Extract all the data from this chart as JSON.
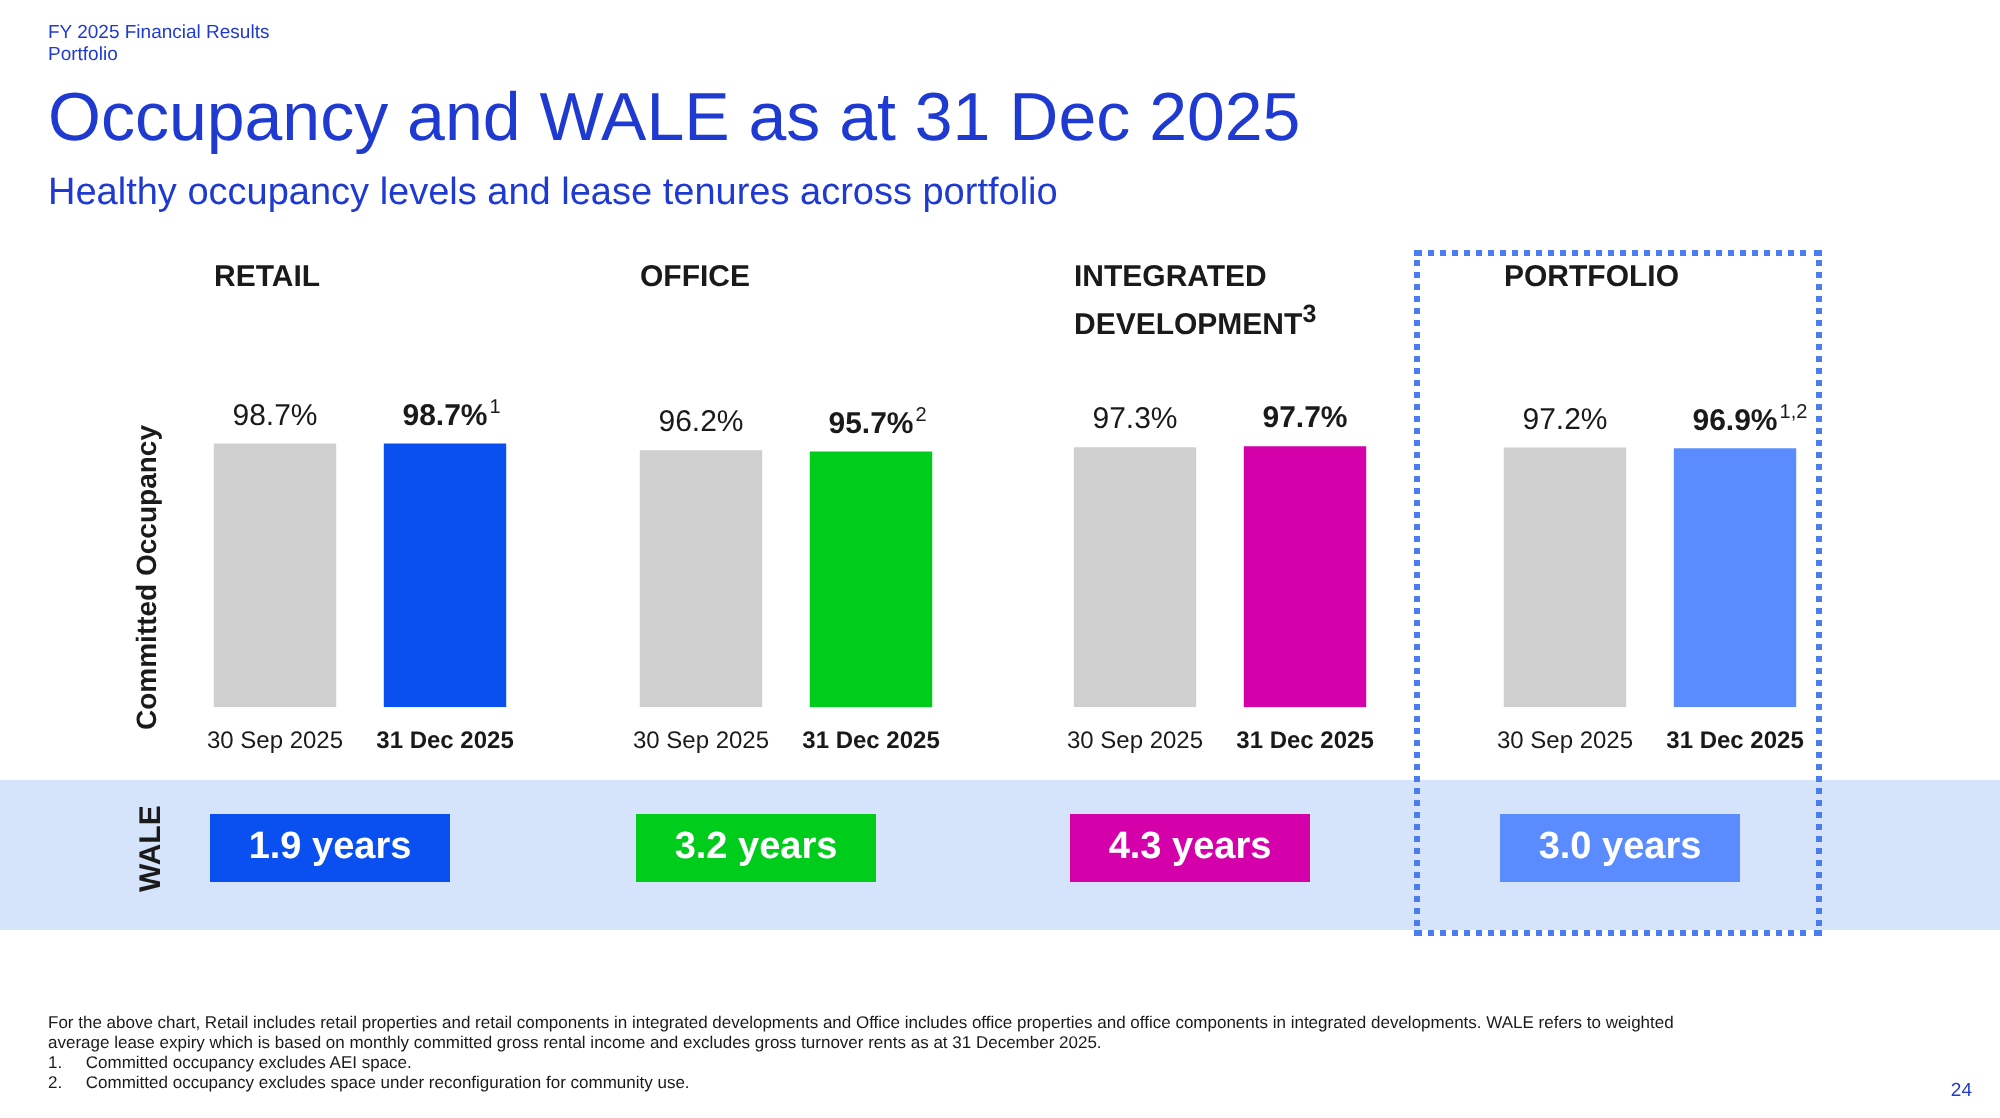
{
  "chart_data": [
    {
      "type": "other",
      "title": "Occupancy and WALE as at 31 Dec 2025",
      "subtitle": "Healthy occupancy levels and lease tenures across portfolio",
      "annotations": [
        "FY 2025 Financial Results",
        "Portfolio",
        "For the above chart, Retail includes retail properties and retail components in integrated developments and Office includes office properties and office components in integrated developments. WALE refers to weighted average lease expiry which is based on monthly committed gross rental income and excludes gross turnover rents as at 31 December 2025.",
        "1.     Committed occupancy excludes AEI space.",
        "2.     Committed occupancy excludes space under reconfiguration for community use.",
        "24"
      ]
    },
    {
      "type": "bar",
      "title": "RETAIL",
      "ylabel": "Committed Occupancy",
      "categories": [
        "30 Sep 2025",
        "31 Dec 2025"
      ],
      "values": [
        98.7,
        98.7
      ],
      "colors": [
        "#cfcfcf",
        "#0a4ff0"
      ],
      "value_labels": [
        "98.7%",
        "98.7%$^{1}$"
      ],
      "annotations": [
        "WALE",
        "1.9 years"
      ]
    },
    {
      "type": "bar",
      "title": "OFFICE",
      "categories": [
        "30 Sep 2025",
        "31 Dec 2025"
      ],
      "values": [
        96.2,
        95.7
      ],
      "colors": [
        "#cfcfcf",
        "#00cc1b"
      ],
      "value_labels": [
        "96.2%",
        "95.7%$^{2}$"
      ],
      "annotations": [
        "3.2 years"
      ]
    },
    {
      "type": "bar",
      "title": "INTEGRATED DEVELOPMENT$^{3}$",
      "categories": [
        "30 Sep 2025",
        "31 Dec 2025"
      ],
      "values": [
        97.3,
        97.7
      ],
      "colors": [
        "#cfcfcf",
        "#d400aa"
      ],
      "value_labels": [
        "97.3%",
        "97.7%"
      ],
      "annotations": [
        "4.3 years"
      ]
    },
    {
      "type": "bar",
      "title": "PORTFOLIO",
      "categories": [
        "30 Sep 2025",
        "31 Dec 2025"
      ],
      "values": [
        97.2,
        96.9
      ],
      "colors": [
        "#cfcfcf",
        "#5b8cff"
      ],
      "value_labels": [
        "97.2%",
        "96.9%$^{1,2}$"
      ],
      "annotations": [
        "3.0 years"
      ]
    }
  ]
}
